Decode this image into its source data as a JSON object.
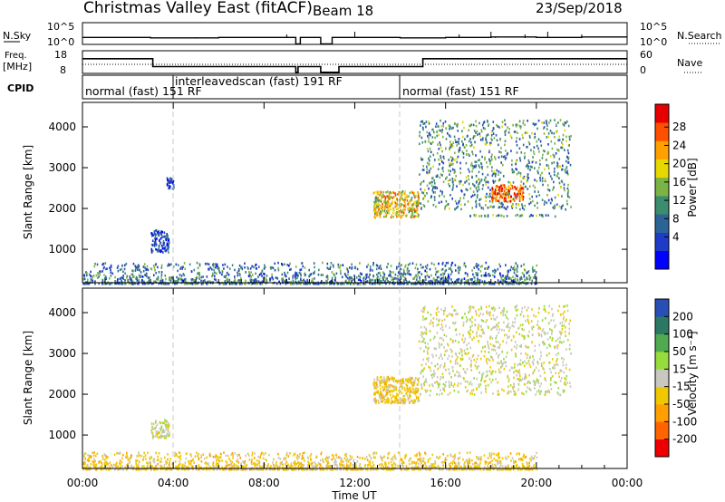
{
  "header": {
    "title": "Christmas Valley East (fitACF)",
    "beam": "Beam 18",
    "date": "23/Sep/2018"
  },
  "top_panels": {
    "nsky_label": "N.Sky",
    "nsky_top_tick": "10^5",
    "nsky_bottom_tick": "10^0",
    "nsearch_label": "N.Search",
    "nsearch_top_tick": "10^5",
    "nsearch_bottom_tick": "10^0",
    "freq_label_line1": "Freq.",
    "freq_label_line2": "[MHz]",
    "freq_top_tick": "18",
    "freq_bottom_tick": "8",
    "nave_label": "Nave",
    "nave_top_tick": "60",
    "nave_bottom_tick": "0",
    "cpid_label": "CPID",
    "cpid_segments": [
      "normal (fast) 151 RF",
      "interleavedscan (fast) 191 RF",
      "normal (fast) 151 RF"
    ]
  },
  "power_colorbar": {
    "label": "Power [dB]",
    "ticks": [
      "28",
      "24",
      "20",
      "16",
      "12",
      "8",
      "4"
    ],
    "colors": [
      "#0000ff",
      "#1e3cc8",
      "#2c6496",
      "#3c8c6e",
      "#7ab445",
      "#e8d800",
      "#ffa000",
      "#ff5000",
      "#e60000"
    ]
  },
  "velocity_colorbar": {
    "label": "Velocity [m s⁻¹]",
    "ticks": [
      "200",
      "100",
      "50",
      "15",
      "-15",
      "-50",
      "-100",
      "-200"
    ],
    "colors": [
      "#ee0000",
      "#ff6400",
      "#ffa000",
      "#f0c800",
      "#c8c8c0",
      "#96dc3c",
      "#50aa50",
      "#2c7864",
      "#2850b4"
    ]
  },
  "chart_data": [
    {
      "type": "line",
      "panel": "N.Sky / N.Search",
      "xlim_hours": [
        0,
        24
      ],
      "x_hours": [
        0,
        3,
        6,
        9,
        9.4,
        9.6,
        10.5,
        11,
        12,
        14,
        16,
        18,
        20,
        22,
        24
      ],
      "nsky_log10": [
        1.6,
        1.5,
        1.6,
        1.6,
        0.1,
        1.6,
        0.1,
        1.6,
        1.6,
        1.5,
        1.6,
        1.7,
        1.6,
        1.7,
        1.7
      ],
      "ylim_log10": [
        0,
        5
      ]
    },
    {
      "type": "line",
      "panel": "Freq. / Nave",
      "xlim_hours": [
        0,
        24
      ],
      "x_hours": [
        0,
        3,
        3.1,
        9.3,
        9.4,
        9.5,
        10.5,
        11.3,
        12,
        14.9,
        15,
        24
      ],
      "freq_mhz": [
        14.5,
        14.5,
        11,
        11,
        8.5,
        11,
        8.5,
        11,
        11,
        11,
        14.5,
        14.5
      ],
      "ylim_mhz": [
        8,
        18
      ],
      "nave_ylim": [
        0,
        60
      ]
    },
    {
      "type": "table",
      "panel": "CPID",
      "segments": [
        {
          "start_hour": 0,
          "end_hour": 4,
          "label": "normal (fast) 151 RF"
        },
        {
          "start_hour": 4,
          "end_hour": 14,
          "label": "interleavedscan (fast) 191 RF"
        },
        {
          "start_hour": 14,
          "end_hour": 24,
          "label": "normal (fast) 151 RF"
        }
      ]
    },
    {
      "type": "heatmap",
      "panel": "Power",
      "xlabel": "",
      "ylabel": "Slant Range [km]",
      "ylim_km": [
        180,
        4600
      ],
      "y_ticks": [
        "1000",
        "2000",
        "3000",
        "4000"
      ],
      "x_ticks_hours": [
        0,
        4,
        8,
        12,
        16,
        20,
        24
      ],
      "clim_db": [
        0,
        32
      ],
      "features": [
        {
          "name": "ground scatter band",
          "t_start": 0,
          "t_end": 20,
          "r_start": 180,
          "r_end": 700,
          "db": 10
        },
        {
          "name": "echo near 03:30",
          "t_start": 3.0,
          "t_end": 3.8,
          "r_start": 950,
          "r_end": 1500,
          "db": 6
        },
        {
          "name": "streak near 04:00",
          "t_start": 3.7,
          "t_end": 4.0,
          "r_start": 2500,
          "r_end": 2780,
          "db": 4
        },
        {
          "name": "echo 13:00-14:00",
          "t_start": 12.8,
          "t_end": 14.8,
          "r_start": 1800,
          "r_end": 2450,
          "db": 20
        },
        {
          "name": "echo 14:00-21:00",
          "t_start": 14.8,
          "t_end": 21.5,
          "r_start": 2000,
          "r_end": 4200,
          "db": 12
        },
        {
          "name": "peak near 18:30",
          "t_start": 18.0,
          "t_end": 19.4,
          "r_start": 2200,
          "r_end": 2600,
          "db": 26
        },
        {
          "name": "line near 1850 km",
          "t_start": 17,
          "t_end": 21,
          "r_start": 1830,
          "r_end": 1870,
          "db": 12
        }
      ]
    },
    {
      "type": "heatmap",
      "panel": "Velocity",
      "xlabel": "Time UT",
      "ylabel": "Slant Range [km]",
      "ylim_km": [
        180,
        4600
      ],
      "y_ticks": [
        "1000",
        "2000",
        "3000",
        "4000"
      ],
      "x_ticks": [
        "00:00",
        "04:00",
        "08:00",
        "12:00",
        "16:00",
        "20:00",
        "00:00"
      ],
      "x_ticks_hours": [
        0,
        4,
        8,
        12,
        16,
        20,
        24
      ],
      "clim_ms": [
        -250,
        250
      ],
      "features": [
        {
          "name": "ground scatter band",
          "t_start": 0,
          "t_end": 20,
          "r_start": 180,
          "r_end": 600,
          "v": -30
        },
        {
          "name": "echo near 03:30",
          "t_start": 3.0,
          "t_end": 3.8,
          "r_start": 950,
          "r_end": 1400,
          "v": 0
        },
        {
          "name": "echo 13:00-14:00",
          "t_start": 12.8,
          "t_end": 14.8,
          "r_start": 1800,
          "r_end": 2450,
          "v": -30
        },
        {
          "name": "echo 14:00-21:00",
          "t_start": 14.8,
          "t_end": 21.5,
          "r_start": 2000,
          "r_end": 4200,
          "v": 0
        }
      ]
    }
  ]
}
